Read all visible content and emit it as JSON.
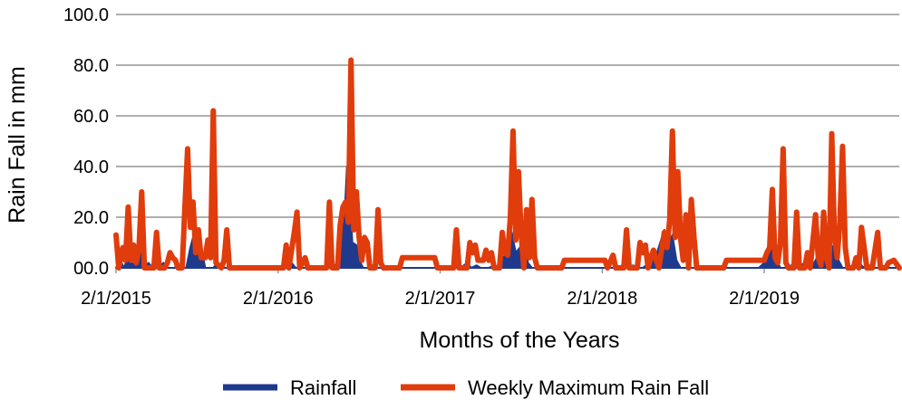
{
  "chart_data": {
    "type": "line",
    "title": "",
    "xlabel": "Months of the Years",
    "ylabel": "Rain Fall in mm",
    "ylim": [
      0,
      100
    ],
    "y_ticks": [
      "00.0",
      "20.0",
      "40.0",
      "60.0",
      "80.0",
      "100.0"
    ],
    "y_tick_values": [
      0,
      20,
      40,
      60,
      80,
      100
    ],
    "x_range": [
      0,
      58
    ],
    "x_ticks": [
      {
        "label": "2/1/2015",
        "x": 0
      },
      {
        "label": "2/1/2016",
        "x": 12
      },
      {
        "label": "2/1/2017",
        "x": 24
      },
      {
        "label": "2/1/2018",
        "x": 36
      },
      {
        "label": "2/1/2019",
        "x": 48
      }
    ],
    "grid": true,
    "legend_position": "bottom",
    "series": [
      {
        "name": "Rainfall",
        "color": "#1f3a8c",
        "style": "area",
        "points": [
          [
            0,
            0
          ],
          [
            0.3,
            3
          ],
          [
            0.6,
            0
          ],
          [
            0.9,
            5
          ],
          [
            1.2,
            2
          ],
          [
            1.5,
            0
          ],
          [
            1.8,
            6
          ],
          [
            2.1,
            0
          ],
          [
            2.4,
            2
          ],
          [
            2.7,
            0
          ],
          [
            3.2,
            0
          ],
          [
            3.5,
            2
          ],
          [
            3.8,
            0
          ],
          [
            4.3,
            0
          ],
          [
            4.6,
            1
          ],
          [
            4.9,
            0
          ],
          [
            5.2,
            0
          ],
          [
            5.5,
            8
          ],
          [
            5.7,
            12
          ],
          [
            5.9,
            10
          ],
          [
            6.1,
            14
          ],
          [
            6.3,
            9
          ],
          [
            6.6,
            0
          ],
          [
            7.2,
            0
          ],
          [
            7.5,
            2
          ],
          [
            7.8,
            0
          ],
          [
            8.2,
            0
          ],
          [
            8.6,
            0
          ],
          [
            12.0,
            0
          ],
          [
            12.5,
            0
          ],
          [
            13.0,
            2
          ],
          [
            13.3,
            0
          ],
          [
            14.0,
            0
          ],
          [
            15.0,
            0
          ],
          [
            16.0,
            0
          ],
          [
            16.4,
            2
          ],
          [
            16.6,
            15
          ],
          [
            16.9,
            18
          ],
          [
            17.1,
            40
          ],
          [
            17.3,
            30
          ],
          [
            17.5,
            10
          ],
          [
            17.8,
            9
          ],
          [
            18.0,
            3
          ],
          [
            18.3,
            0
          ],
          [
            18.7,
            0
          ],
          [
            19.0,
            1
          ],
          [
            19.3,
            0
          ],
          [
            20.0,
            0
          ],
          [
            23.0,
            0
          ],
          [
            24.0,
            0
          ],
          [
            25.0,
            0
          ],
          [
            25.5,
            0
          ],
          [
            26.0,
            2
          ],
          [
            26.3,
            0
          ],
          [
            26.7,
            1
          ],
          [
            27.0,
            0
          ],
          [
            27.6,
            0
          ],
          [
            28.0,
            1
          ],
          [
            28.4,
            0
          ],
          [
            28.7,
            4
          ],
          [
            29.0,
            8
          ],
          [
            29.3,
            14
          ],
          [
            29.6,
            6
          ],
          [
            29.9,
            8
          ],
          [
            30.2,
            12
          ],
          [
            30.5,
            2
          ],
          [
            30.8,
            0
          ],
          [
            31.0,
            0
          ],
          [
            34.0,
            0
          ],
          [
            36.0,
            0
          ],
          [
            37.0,
            0
          ],
          [
            37.5,
            1
          ],
          [
            37.8,
            0
          ],
          [
            38.3,
            1
          ],
          [
            38.6,
            0
          ],
          [
            39.0,
            0
          ],
          [
            39.5,
            2
          ],
          [
            40.0,
            5
          ],
          [
            40.3,
            10
          ],
          [
            40.6,
            15
          ],
          [
            40.9,
            9
          ],
          [
            41.2,
            13
          ],
          [
            41.5,
            3
          ],
          [
            41.8,
            0
          ],
          [
            42.0,
            0
          ],
          [
            44.0,
            0
          ],
          [
            45.0,
            0
          ],
          [
            46.0,
            0
          ],
          [
            47.0,
            0
          ],
          [
            47.6,
            0
          ],
          [
            48.0,
            2
          ],
          [
            48.3,
            6
          ],
          [
            48.6,
            8
          ],
          [
            48.9,
            3
          ],
          [
            49.2,
            0
          ],
          [
            49.6,
            0
          ],
          [
            50.0,
            1
          ],
          [
            50.4,
            0
          ],
          [
            51.0,
            2
          ],
          [
            51.5,
            0
          ],
          [
            52.0,
            5
          ],
          [
            52.3,
            10
          ],
          [
            52.6,
            4
          ],
          [
            52.9,
            8
          ],
          [
            53.2,
            9
          ],
          [
            53.5,
            3
          ],
          [
            53.8,
            0
          ],
          [
            54.2,
            0
          ],
          [
            54.6,
            1
          ],
          [
            55.0,
            2
          ],
          [
            55.4,
            0
          ],
          [
            55.8,
            1
          ],
          [
            56.2,
            0
          ],
          [
            56.8,
            0
          ],
          [
            57.2,
            0
          ],
          [
            58.0,
            0
          ]
        ]
      },
      {
        "name": "Weekly Maximum Rain Fall",
        "color": "#e03c0c",
        "style": "line",
        "points": [
          [
            0,
            13
          ],
          [
            0.2,
            0
          ],
          [
            0.5,
            8
          ],
          [
            0.7,
            3
          ],
          [
            0.9,
            24
          ],
          [
            1.1,
            3
          ],
          [
            1.3,
            9
          ],
          [
            1.5,
            2
          ],
          [
            1.7,
            8
          ],
          [
            1.9,
            30
          ],
          [
            2.1,
            0
          ],
          [
            2.8,
            0
          ],
          [
            3.0,
            14
          ],
          [
            3.2,
            0
          ],
          [
            3.6,
            0
          ],
          [
            3.8,
            2
          ],
          [
            4.0,
            6
          ],
          [
            4.2,
            4
          ],
          [
            4.4,
            3
          ],
          [
            4.6,
            0
          ],
          [
            4.9,
            0
          ],
          [
            5.1,
            24
          ],
          [
            5.3,
            47
          ],
          [
            5.5,
            16
          ],
          [
            5.7,
            26
          ],
          [
            5.9,
            6
          ],
          [
            6.1,
            15
          ],
          [
            6.3,
            4
          ],
          [
            6.6,
            4
          ],
          [
            6.8,
            11
          ],
          [
            7.0,
            4
          ],
          [
            7.2,
            62
          ],
          [
            7.4,
            2
          ],
          [
            7.8,
            0
          ],
          [
            8.0,
            3
          ],
          [
            8.2,
            15
          ],
          [
            8.4,
            0
          ],
          [
            8.8,
            0
          ],
          [
            12.0,
            0
          ],
          [
            12.4,
            0
          ],
          [
            12.6,
            9
          ],
          [
            12.8,
            0
          ],
          [
            13.2,
            14
          ],
          [
            13.4,
            22
          ],
          [
            13.6,
            0
          ],
          [
            14.0,
            4
          ],
          [
            14.2,
            0
          ],
          [
            15.0,
            0
          ],
          [
            15.6,
            0
          ],
          [
            15.8,
            26
          ],
          [
            16.0,
            0
          ],
          [
            16.4,
            0
          ],
          [
            16.6,
            17
          ],
          [
            16.8,
            24
          ],
          [
            17.0,
            26
          ],
          [
            17.2,
            18
          ],
          [
            17.4,
            82
          ],
          [
            17.6,
            15
          ],
          [
            17.8,
            30
          ],
          [
            18.0,
            12
          ],
          [
            18.2,
            3
          ],
          [
            18.4,
            12
          ],
          [
            18.6,
            10
          ],
          [
            18.8,
            0
          ],
          [
            19.2,
            0
          ],
          [
            19.4,
            23
          ],
          [
            19.6,
            2
          ],
          [
            19.8,
            0
          ],
          [
            21.0,
            0
          ],
          [
            21.2,
            4
          ],
          [
            23.6,
            4
          ],
          [
            23.8,
            0
          ],
          [
            25.0,
            0
          ],
          [
            25.2,
            15
          ],
          [
            25.4,
            0
          ],
          [
            26.0,
            0
          ],
          [
            26.2,
            10
          ],
          [
            26.4,
            6
          ],
          [
            26.6,
            9
          ],
          [
            26.8,
            3
          ],
          [
            27.2,
            3
          ],
          [
            27.4,
            7
          ],
          [
            27.6,
            3
          ],
          [
            27.8,
            6
          ],
          [
            28.0,
            0
          ],
          [
            28.4,
            0
          ],
          [
            28.6,
            14
          ],
          [
            28.8,
            6
          ],
          [
            29.0,
            5
          ],
          [
            29.2,
            20
          ],
          [
            29.4,
            54
          ],
          [
            29.6,
            11
          ],
          [
            29.8,
            38
          ],
          [
            30.0,
            13
          ],
          [
            30.2,
            0
          ],
          [
            30.4,
            23
          ],
          [
            30.6,
            4
          ],
          [
            30.8,
            27
          ],
          [
            31.0,
            4
          ],
          [
            31.2,
            0
          ],
          [
            33.0,
            0
          ],
          [
            33.2,
            3
          ],
          [
            36.2,
            3
          ],
          [
            36.4,
            0
          ],
          [
            36.8,
            5
          ],
          [
            37.0,
            0
          ],
          [
            37.6,
            0
          ],
          [
            37.8,
            15
          ],
          [
            38.0,
            0
          ],
          [
            38.6,
            0
          ],
          [
            38.8,
            10
          ],
          [
            39.0,
            6
          ],
          [
            39.2,
            9
          ],
          [
            39.4,
            0
          ],
          [
            39.6,
            4
          ],
          [
            39.8,
            7
          ],
          [
            40.0,
            3
          ],
          [
            40.2,
            0
          ],
          [
            40.6,
            14
          ],
          [
            40.8,
            8
          ],
          [
            41.0,
            19
          ],
          [
            41.2,
            54
          ],
          [
            41.4,
            12
          ],
          [
            41.6,
            38
          ],
          [
            41.8,
            12
          ],
          [
            42.0,
            3
          ],
          [
            42.2,
            21
          ],
          [
            42.4,
            0
          ],
          [
            42.6,
            27
          ],
          [
            42.8,
            12
          ],
          [
            43.0,
            0
          ],
          [
            44.0,
            0
          ],
          [
            45.0,
            0
          ],
          [
            45.2,
            3
          ],
          [
            48.0,
            3
          ],
          [
            48.2,
            6
          ],
          [
            48.4,
            8
          ],
          [
            48.6,
            31
          ],
          [
            48.8,
            4
          ],
          [
            49.0,
            2
          ],
          [
            49.2,
            10
          ],
          [
            49.4,
            47
          ],
          [
            49.6,
            2
          ],
          [
            49.8,
            0
          ],
          [
            50.2,
            0
          ],
          [
            50.4,
            22
          ],
          [
            50.6,
            0
          ],
          [
            51.0,
            0
          ],
          [
            51.2,
            6
          ],
          [
            51.4,
            0
          ],
          [
            51.8,
            21
          ],
          [
            52.0,
            4
          ],
          [
            52.2,
            1
          ],
          [
            52.4,
            22
          ],
          [
            52.6,
            4
          ],
          [
            52.8,
            0
          ],
          [
            53.0,
            53
          ],
          [
            53.2,
            12
          ],
          [
            53.4,
            4
          ],
          [
            53.6,
            18
          ],
          [
            53.8,
            48
          ],
          [
            54.0,
            8
          ],
          [
            54.2,
            0
          ],
          [
            54.6,
            0
          ],
          [
            54.8,
            4
          ],
          [
            55.0,
            0
          ],
          [
            55.2,
            16
          ],
          [
            55.4,
            8
          ],
          [
            55.6,
            0
          ],
          [
            56.0,
            0
          ],
          [
            56.4,
            14
          ],
          [
            56.6,
            0
          ],
          [
            57.0,
            0
          ],
          [
            57.2,
            2
          ],
          [
            57.6,
            3
          ],
          [
            58.0,
            0
          ]
        ]
      }
    ]
  }
}
